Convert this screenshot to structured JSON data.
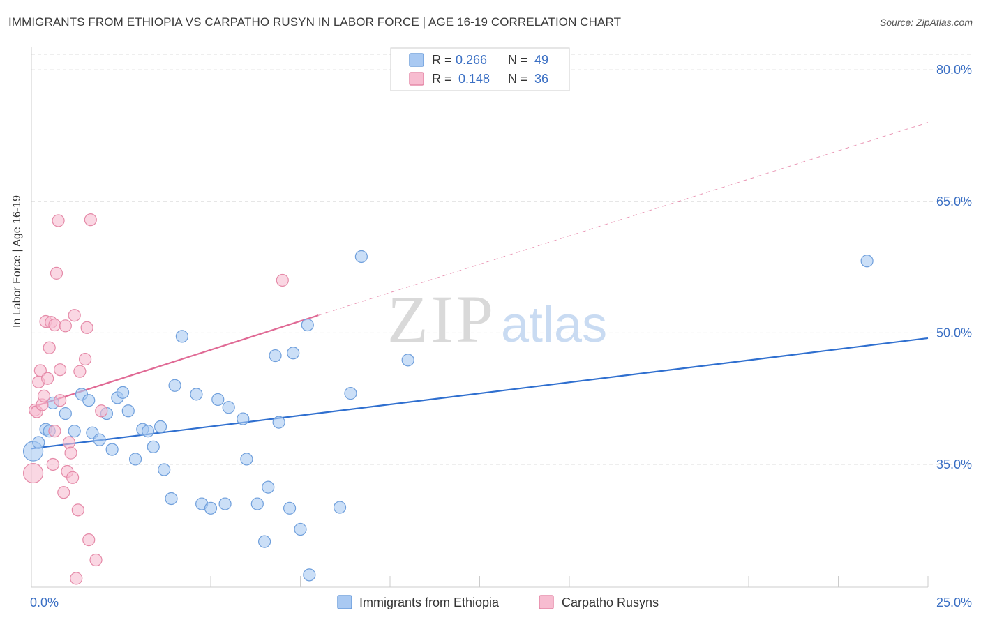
{
  "title": "IMMIGRANTS FROM ETHIOPIA VS CARPATHO RUSYN IN LABOR FORCE | AGE 16-19 CORRELATION CHART",
  "source": "Source: ZipAtlas.com",
  "watermark": {
    "zip": "ZIP",
    "atlas": "atlas"
  },
  "colors": {
    "blue_fill": "#a9c9f2",
    "blue_stroke": "#6f9fdc",
    "blue_line": "#2f6fcf",
    "pink_fill": "#f7bcd0",
    "pink_stroke": "#e58aa8",
    "pink_line": "#e06a95",
    "grid": "#dddddd",
    "axis_text": "#3a6fc4"
  },
  "legend": {
    "rows": [
      {
        "r_label": "R =",
        "r_value": "0.266",
        "n_label": "N =",
        "n_value": "49",
        "series": "blue"
      },
      {
        "r_label": "R =",
        "r_value": "0.148",
        "n_label": "N =",
        "n_value": "36",
        "series": "pink"
      }
    ]
  },
  "bottom_legend": [
    {
      "label": "Immigrants from Ethiopia",
      "series": "blue"
    },
    {
      "label": "Carpatho Rusyns",
      "series": "pink"
    }
  ],
  "chart_data": {
    "type": "scatter",
    "title": "IMMIGRANTS FROM ETHIOPIA VS CARPATHO RUSYN IN LABOR FORCE | AGE 16-19 CORRELATION CHART",
    "xlabel": "",
    "ylabel": "In Labor Force | Age 16-19",
    "xlim": [
      0,
      25
    ],
    "ylim": [
      21,
      82
    ],
    "x_tick_labels": [
      {
        "value": 0,
        "label": "0.0%"
      },
      {
        "value": 25,
        "label": "25.0%"
      }
    ],
    "y_tick_labels": [
      {
        "value": 35,
        "label": "35.0%"
      },
      {
        "value": 50,
        "label": "50.0%"
      },
      {
        "value": 65,
        "label": "65.0%"
      },
      {
        "value": 80,
        "label": "80.0%"
      }
    ],
    "x_minor_ticks": [
      2.5,
      5,
      7.5,
      10,
      12.5,
      15,
      17.5,
      20,
      22.5,
      25
    ],
    "series": [
      {
        "name": "Immigrants from Ethiopia",
        "color": "blue",
        "points": [
          [
            0.05,
            36.5,
            "large"
          ],
          [
            0.2,
            37.5
          ],
          [
            0.4,
            39.0
          ],
          [
            0.5,
            38.8
          ],
          [
            0.6,
            42.0
          ],
          [
            0.95,
            40.8
          ],
          [
            1.2,
            38.8
          ],
          [
            1.4,
            43.0
          ],
          [
            1.6,
            42.3
          ],
          [
            1.7,
            38.6
          ],
          [
            1.9,
            37.8
          ],
          [
            2.1,
            40.8
          ],
          [
            2.25,
            36.7
          ],
          [
            2.4,
            42.6
          ],
          [
            2.55,
            43.2
          ],
          [
            2.7,
            41.1
          ],
          [
            2.9,
            35.6
          ],
          [
            3.1,
            39.0
          ],
          [
            3.25,
            38.8
          ],
          [
            3.4,
            37.0
          ],
          [
            3.6,
            39.3
          ],
          [
            3.7,
            34.4
          ],
          [
            3.9,
            31.1
          ],
          [
            4.0,
            44.0
          ],
          [
            4.2,
            49.6
          ],
          [
            4.6,
            43.0
          ],
          [
            4.75,
            30.5
          ],
          [
            5.0,
            30.0
          ],
          [
            5.2,
            42.4
          ],
          [
            5.4,
            30.5
          ],
          [
            5.5,
            41.5
          ],
          [
            5.9,
            40.2
          ],
          [
            6.0,
            35.6
          ],
          [
            6.3,
            30.5
          ],
          [
            6.5,
            26.2
          ],
          [
            6.6,
            32.4
          ],
          [
            6.8,
            47.4
          ],
          [
            6.9,
            39.8
          ],
          [
            7.2,
            30.0
          ],
          [
            7.3,
            47.7
          ],
          [
            7.5,
            27.6
          ],
          [
            7.7,
            50.9
          ],
          [
            7.75,
            22.4
          ],
          [
            8.6,
            30.1
          ],
          [
            8.9,
            43.1
          ],
          [
            9.2,
            58.7
          ],
          [
            10.5,
            46.9
          ],
          [
            23.3,
            58.2
          ]
        ],
        "trend": {
          "x": [
            0,
            25
          ],
          "y": [
            36.8,
            49.4
          ]
        }
      },
      {
        "name": "Carpatho Rusyns",
        "color": "pink",
        "points": [
          [
            0.05,
            34.0,
            "large"
          ],
          [
            0.1,
            41.2
          ],
          [
            0.15,
            41.0
          ],
          [
            0.2,
            44.4
          ],
          [
            0.25,
            45.7
          ],
          [
            0.3,
            41.8
          ],
          [
            0.35,
            42.8
          ],
          [
            0.4,
            51.3
          ],
          [
            0.45,
            44.8
          ],
          [
            0.5,
            48.3
          ],
          [
            0.55,
            51.2
          ],
          [
            0.6,
            35.0
          ],
          [
            0.65,
            38.8
          ],
          [
            0.65,
            50.9
          ],
          [
            0.7,
            56.8
          ],
          [
            0.75,
            62.8
          ],
          [
            0.8,
            45.8
          ],
          [
            0.8,
            42.3
          ],
          [
            0.9,
            31.8
          ],
          [
            0.95,
            50.8
          ],
          [
            1.0,
            34.2
          ],
          [
            1.05,
            37.5
          ],
          [
            1.1,
            36.3
          ],
          [
            1.15,
            33.5
          ],
          [
            1.2,
            52.0
          ],
          [
            1.25,
            22.0
          ],
          [
            1.3,
            29.8
          ],
          [
            1.35,
            45.6
          ],
          [
            1.5,
            47.0
          ],
          [
            1.55,
            50.6
          ],
          [
            1.6,
            26.4
          ],
          [
            1.65,
            62.9
          ],
          [
            1.8,
            24.1
          ],
          [
            1.95,
            41.1
          ],
          [
            7.0,
            56.0
          ]
        ],
        "trend": {
          "x": [
            0,
            8.0
          ],
          "y": [
            41.5,
            52.0
          ]
        },
        "trend_extension": {
          "x": [
            8.0,
            25
          ],
          "y": [
            52.0,
            74.0
          ]
        }
      }
    ]
  }
}
